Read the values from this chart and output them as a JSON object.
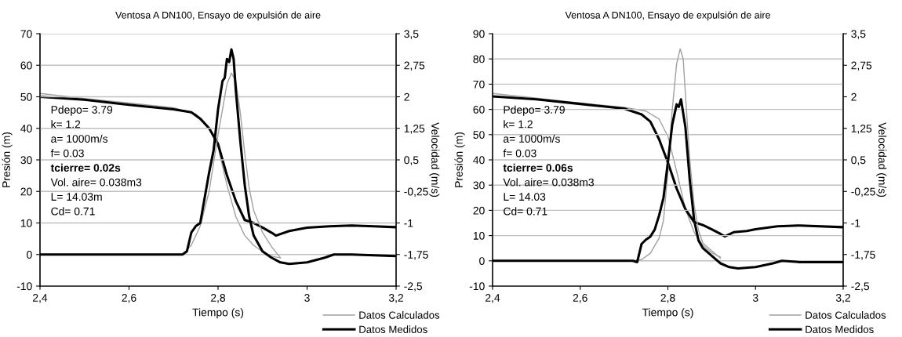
{
  "chart_data": [
    {
      "type": "line",
      "title": "Ventosa A DN100, Ensayo de expulsión de aire",
      "xlabel": "Tiempo (s)",
      "ylabel": "Presión (m)",
      "y2label": "Velocidad (m/s)",
      "xlim": [
        2.4,
        3.2
      ],
      "xticks": [
        {
          "value": 2.4,
          "label": "2,4"
        },
        {
          "value": 2.6,
          "label": "2,6"
        },
        {
          "value": 2.8,
          "label": "2,8"
        },
        3,
        {
          "value": 3.2,
          "label": "3,2"
        }
      ],
      "ylim": [
        -10,
        70
      ],
      "yticks": [
        -10,
        0,
        10,
        20,
        30,
        40,
        50,
        60,
        70
      ],
      "y2lim": [
        -2.5,
        3.5
      ],
      "y2ticks": [
        {
          "value": -2.5,
          "label": "-2,5"
        },
        {
          "value": -1.75,
          "label": "-1,75"
        },
        -1,
        {
          "value": -0.25,
          "label": "-0,25"
        },
        {
          "value": 0.5,
          "label": "0,5"
        },
        {
          "value": 1.25,
          "label": "1,25"
        },
        2,
        {
          "value": 2.75,
          "label": "2,75"
        },
        {
          "value": 3.5,
          "label": "3,5"
        }
      ],
      "grid": "y",
      "legend": "bottom right",
      "annotations": [
        "Pdepo= 3.79",
        "k= 1.2",
        "a= 1000m/s",
        "f= 0.03",
        "tcierre= 0.02s",
        "Vol. aire= 0.038m3",
        "L= 14.03m",
        "Cd= 0.71"
      ],
      "series": [
        {
          "name": "Datos Calculados",
          "color": "#a0a0a0",
          "x": [
            2.4,
            2.6,
            2.72,
            2.74,
            2.76,
            2.78,
            2.8,
            2.82,
            2.83,
            2.84,
            2.85,
            2.86,
            2.87,
            2.88,
            2.9,
            2.92,
            2.94
          ],
          "values": [
            0,
            0,
            0,
            3,
            9,
            20,
            38,
            54,
            57.5,
            55,
            45,
            32,
            21,
            14,
            7,
            2.5,
            -1
          ]
        },
        {
          "name": "Datos Medidos",
          "color": "#000000",
          "x": [
            2.4,
            2.5,
            2.6,
            2.7,
            2.72,
            2.73,
            2.74,
            2.75,
            2.76,
            2.77,
            2.78,
            2.79,
            2.8,
            2.81,
            2.815,
            2.82,
            2.825,
            2.83,
            2.835,
            2.84,
            2.85,
            2.86,
            2.87,
            2.88,
            2.9,
            2.92,
            2.94,
            2.96,
            3.0,
            3.04,
            3.06,
            3.1,
            3.2
          ],
          "values": [
            0,
            0,
            0,
            0,
            0,
            1,
            7,
            9,
            10,
            18,
            26,
            33,
            46,
            55,
            56,
            62,
            61,
            65,
            62,
            52,
            36,
            22,
            12,
            6,
            1,
            -1,
            -2.5,
            -3,
            -2.5,
            -1,
            0,
            0,
            -0.5
          ]
        },
        {
          "color": "#a0a0a0",
          "axis": "y2",
          "x": [
            2.4,
            2.5,
            2.6,
            2.7,
            2.75,
            2.78,
            2.8,
            2.82,
            2.84,
            2.86,
            2.88,
            2.9,
            2.92,
            2.94
          ],
          "values": [
            2.08,
            1.96,
            1.85,
            1.74,
            1.59,
            1.25,
            0.8,
            -0.1,
            -0.85,
            -1.3,
            -1.53,
            -1.68,
            -1.79,
            -1.83
          ]
        },
        {
          "color": "#000000",
          "axis": "y2",
          "x": [
            2.4,
            2.5,
            2.6,
            2.7,
            2.74,
            2.76,
            2.78,
            2.8,
            2.82,
            2.84,
            2.86,
            2.88,
            2.9,
            2.92,
            2.93,
            2.96,
            3.0,
            3.05,
            3.1,
            3.15,
            3.2
          ],
          "values": [
            2.0,
            1.93,
            1.81,
            1.7,
            1.63,
            1.48,
            1.25,
            0.88,
            0.13,
            -0.48,
            -0.93,
            -1.0,
            -1.11,
            -1.23,
            -1.3,
            -1.19,
            -1.11,
            -1.08,
            -1.06,
            -1.08,
            -1.1
          ]
        }
      ]
    },
    {
      "type": "line",
      "title": "Ventosa A DN100, Ensayo de expulsión de aire",
      "xlabel": "Tiempo (s)",
      "ylabel": "Presión (m)",
      "y2label": "Velocidad (m/s)",
      "xlim": [
        2.4,
        3.2
      ],
      "xticks": [
        {
          "value": 2.4,
          "label": "2,4"
        },
        {
          "value": 2.6,
          "label": "2,6"
        },
        {
          "value": 2.8,
          "label": "2,8"
        },
        3,
        {
          "value": 3.2,
          "label": "3,2"
        }
      ],
      "ylim": [
        -10,
        90
      ],
      "yticks": [
        -10,
        0,
        10,
        20,
        30,
        40,
        50,
        60,
        70,
        80,
        90
      ],
      "y2lim": [
        -2.5,
        3.5
      ],
      "y2ticks": [
        {
          "value": -2.5,
          "label": "-2,5"
        },
        {
          "value": -1.75,
          "label": "-1,75"
        },
        -1,
        {
          "value": -0.25,
          "label": "-0,25"
        },
        {
          "value": 0.5,
          "label": "0,5"
        },
        {
          "value": 1.25,
          "label": "1,25"
        },
        2,
        {
          "value": 2.75,
          "label": "2,75"
        },
        {
          "value": 3.5,
          "label": "3,5"
        }
      ],
      "grid": "y",
      "legend": "bottom right",
      "annotations": [
        "Pdepo= 3.79",
        "k= 1.2",
        "a= 1000m/s",
        "f= 0.03",
        "tcierre= 0.06s",
        "Vol. aire= 0.038m3",
        "L= 14.03",
        "Cd= 0.71"
      ],
      "series": [
        {
          "name": "Datos Calculados",
          "color": "#a0a0a0",
          "x": [
            2.4,
            2.6,
            2.72,
            2.74,
            2.76,
            2.78,
            2.79,
            2.8,
            2.81,
            2.82,
            2.828,
            2.835,
            2.84,
            2.85,
            2.86,
            2.87,
            2.88,
            2.9,
            2.92
          ],
          "values": [
            0,
            0,
            0,
            0.5,
            3,
            9,
            16,
            35,
            60,
            78,
            84,
            80,
            66,
            40,
            22,
            12,
            7,
            4,
            1
          ]
        },
        {
          "name": "Datos Medidos",
          "color": "#000000",
          "x": [
            2.4,
            2.5,
            2.6,
            2.7,
            2.72,
            2.73,
            2.74,
            2.75,
            2.76,
            2.77,
            2.78,
            2.79,
            2.8,
            2.81,
            2.82,
            2.825,
            2.83,
            2.84,
            2.85,
            2.86,
            2.87,
            2.88,
            2.9,
            2.92,
            2.94,
            2.96,
            3.0,
            3.04,
            3.06,
            3.1,
            3.2
          ],
          "values": [
            0,
            0,
            0,
            0,
            0,
            -0.5,
            6.7,
            8.4,
            9.6,
            12.4,
            18,
            25,
            39,
            54,
            62,
            61,
            64,
            53,
            32,
            16,
            8,
            5,
            2,
            -1,
            -2.5,
            -3,
            -2.5,
            -1,
            0,
            -0.5,
            -0.5
          ]
        },
        {
          "color": "#a0a0a0",
          "axis": "y2",
          "x": [
            2.4,
            2.5,
            2.6,
            2.7,
            2.75,
            2.78,
            2.8,
            2.82,
            2.84,
            2.86,
            2.88,
            2.9,
            2.92
          ],
          "values": [
            2.08,
            1.97,
            1.85,
            1.75,
            1.66,
            1.47,
            1.06,
            0.23,
            -0.67,
            -1.22,
            -1.53,
            -1.71,
            -1.81
          ]
        },
        {
          "color": "#000000",
          "axis": "y2",
          "x": [
            2.4,
            2.5,
            2.6,
            2.7,
            2.74,
            2.76,
            2.78,
            2.8,
            2.82,
            2.84,
            2.86,
            2.88,
            2.9,
            2.92,
            2.93,
            2.95,
            2.98,
            3.0,
            3.05,
            3.1,
            3.2
          ],
          "values": [
            2.01,
            1.94,
            1.83,
            1.72,
            1.58,
            1.41,
            0.99,
            0.44,
            -0.18,
            -0.67,
            -0.98,
            -1.05,
            -1.15,
            -1.26,
            -1.32,
            -1.22,
            -1.19,
            -1.15,
            -1.08,
            -1.06,
            -1.1
          ]
        }
      ]
    }
  ]
}
